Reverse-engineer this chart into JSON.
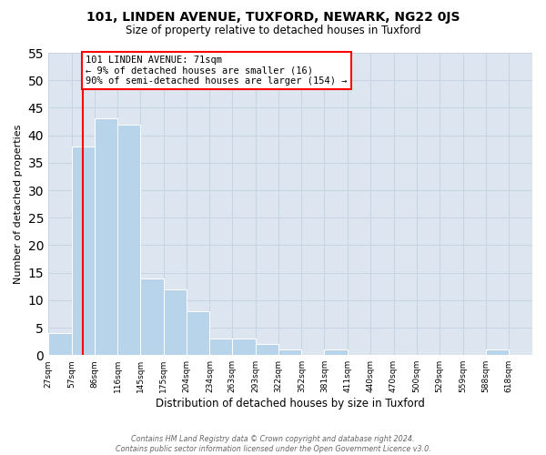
{
  "title1": "101, LINDEN AVENUE, TUXFORD, NEWARK, NG22 0JS",
  "title2": "Size of property relative to detached houses in Tuxford",
  "xlabel": "Distribution of detached houses by size in Tuxford",
  "ylabel": "Number of detached properties",
  "bin_labels": [
    "27sqm",
    "57sqm",
    "86sqm",
    "116sqm",
    "145sqm",
    "175sqm",
    "204sqm",
    "234sqm",
    "263sqm",
    "293sqm",
    "322sqm",
    "352sqm",
    "381sqm",
    "411sqm",
    "440sqm",
    "470sqm",
    "500sqm",
    "529sqm",
    "559sqm",
    "588sqm",
    "618sqm"
  ],
  "bar_heights": [
    4,
    38,
    43,
    42,
    14,
    12,
    8,
    3,
    3,
    2,
    1,
    0,
    1,
    0,
    0,
    0,
    0,
    0,
    0,
    1,
    0
  ],
  "bar_color": "#b8d4ea",
  "grid_color": "#c8d4e4",
  "background_color": "#dde6f0",
  "property_line_x": 71,
  "bin_edges": [
    27,
    57,
    86,
    116,
    145,
    175,
    204,
    234,
    263,
    293,
    322,
    352,
    381,
    411,
    440,
    470,
    500,
    529,
    559,
    588,
    618,
    648
  ],
  "annotation_title": "101 LINDEN AVENUE: 71sqm",
  "annotation_line1": "← 9% of detached houses are smaller (16)",
  "annotation_line2": "90% of semi-detached houses are larger (154) →",
  "footer1": "Contains HM Land Registry data © Crown copyright and database right 2024.",
  "footer2": "Contains public sector information licensed under the Open Government Licence v3.0.",
  "ylim": [
    0,
    55
  ],
  "yticks": [
    0,
    5,
    10,
    15,
    20,
    25,
    30,
    35,
    40,
    45,
    50,
    55
  ]
}
